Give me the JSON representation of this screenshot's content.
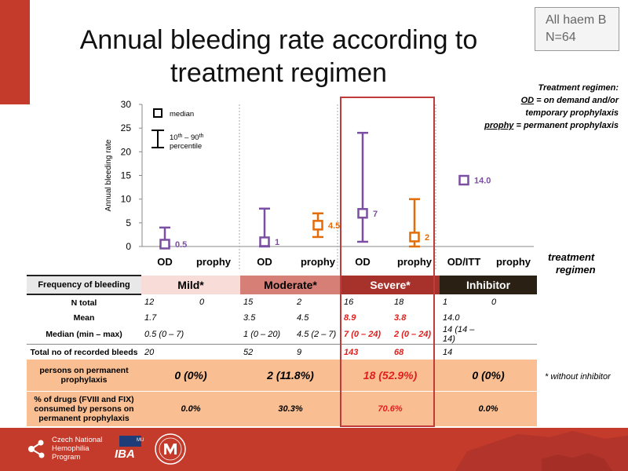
{
  "title_line1": "Annual bleeding rate according to",
  "title_line2": "treatment regimen",
  "badge": {
    "line1": "All haem B",
    "line2": "N=64"
  },
  "regimen_legend": {
    "heading": "Treatment regimen:",
    "od_abbr": "OD",
    "od_text": " = on demand and/or",
    "od_text2": "temporary prophylaxis",
    "prophy_abbr": "prophy",
    "prophy_text": " = permanent prophylaxis"
  },
  "chart_legend": {
    "median": "median",
    "pct_text1": "10",
    "pct_sup1": "th",
    "pct_text2": " – 90",
    "pct_sup2": "th",
    "pct_text3": "percentile"
  },
  "treatment_label1": "treatment",
  "treatment_label2": "regimen",
  "colors": {
    "od": "#7b4fa3",
    "prophy": "#e36c09",
    "accent": "#c43a2b"
  },
  "chart_data": {
    "type": "errorbar",
    "ylabel": "Annual bleeding rate",
    "ylim": [
      0,
      30
    ],
    "yticks": [
      0,
      5,
      10,
      15,
      20,
      25,
      30
    ],
    "categories": [
      "OD",
      "prophy",
      "OD",
      "prophy",
      "OD",
      "prophy",
      "OD/ITT",
      "prophy"
    ],
    "groups": [
      "Mild*",
      "Moderate*",
      "Severe*",
      "Inhibitor"
    ],
    "points": [
      {
        "category_index": 0,
        "regimen": "od",
        "median": 0.5,
        "p10": 0,
        "p90": 4,
        "label": "0.5"
      },
      {
        "category_index": 2,
        "regimen": "od",
        "median": 1,
        "p10": 0,
        "p90": 8,
        "label": "1"
      },
      {
        "category_index": 3,
        "regimen": "prophy",
        "median": 4.5,
        "p10": 2,
        "p90": 7,
        "label": "4.5"
      },
      {
        "category_index": 4,
        "regimen": "od",
        "median": 7,
        "p10": 1,
        "p90": 24,
        "label": "7"
      },
      {
        "category_index": 5,
        "regimen": "prophy",
        "median": 2,
        "p10": 0,
        "p90": 10,
        "label": "2"
      },
      {
        "category_index": 6,
        "regimen": "od",
        "median": 14,
        "p10": null,
        "p90": null,
        "label": "14.0"
      }
    ]
  },
  "table": {
    "header_label": "Frequency of bleeding",
    "groups": [
      "Mild*",
      "Moderate*",
      "Severe*",
      "Inhibitor"
    ],
    "rows": [
      {
        "label": "N total",
        "cells": [
          "12",
          "0",
          "15",
          "2",
          "16",
          "18",
          "1",
          "0"
        ]
      },
      {
        "label": "Mean",
        "cells": [
          "1.7",
          "",
          "3.5",
          "4.5",
          "8.9",
          "3.8",
          "14.0",
          ""
        ]
      },
      {
        "label": "Median (min – max)",
        "cells": [
          "0.5 (0 – 7)",
          "",
          "1 (0 – 20)",
          "4.5 (2 – 7)",
          "7 (0 – 24)",
          "2 (0 – 24)",
          "14 (14 – 14)",
          ""
        ]
      },
      {
        "label": "Total no of recorded bleeds",
        "cells": [
          "20",
          "",
          "52",
          "9",
          "143",
          "68",
          "14",
          ""
        ]
      }
    ],
    "perm_label": "persons on permanent prophylaxis",
    "perm_values": [
      "0 (0%)",
      "2 (11.8%)",
      "18 (52.9%)",
      "0 (0%)"
    ],
    "drugs_label": "% of drugs (FVIII and FIX) consumed by persons on permanent prophylaxis",
    "drugs_values": [
      "0.0%",
      "30.3%",
      "70.6%",
      "0.0%"
    ]
  },
  "footnote": "* without inhibitor",
  "footer": {
    "logo_text": [
      "Czech National",
      "Hemophilia",
      "Program"
    ],
    "iba_text": "IBA",
    "iba_super": "MU"
  }
}
